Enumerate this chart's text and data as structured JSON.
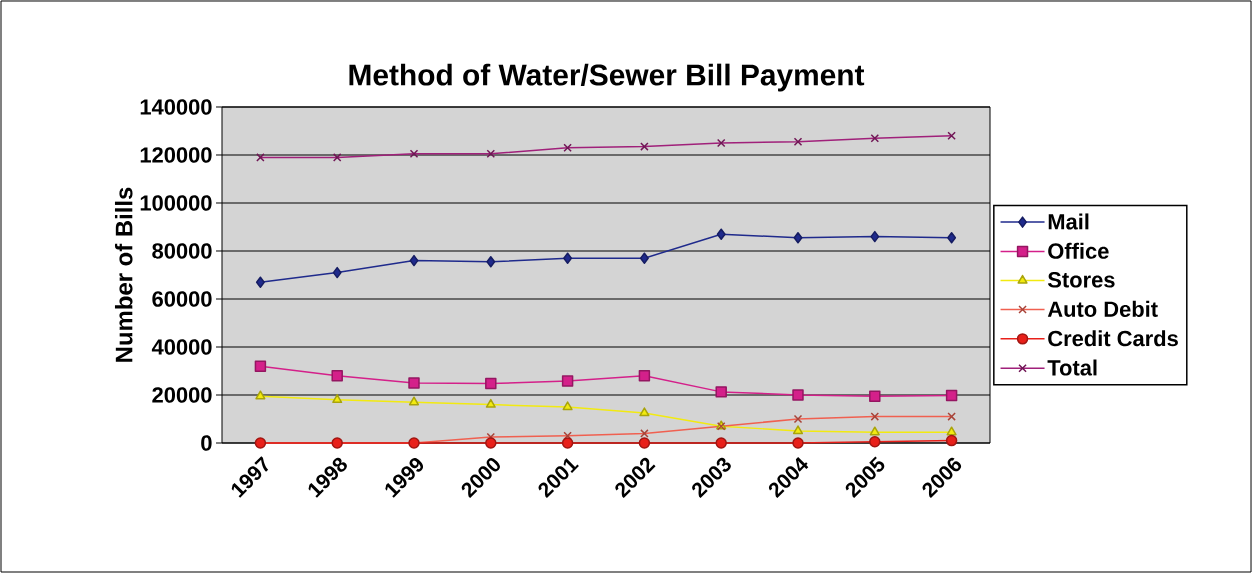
{
  "chart_data": {
    "type": "line",
    "title": "Method of Water/Sewer Bill Payment",
    "ylabel": "Number of Bills",
    "categories": [
      "1997",
      "1998",
      "1999",
      "2000",
      "2001",
      "2002",
      "2003",
      "2004",
      "2005",
      "2006"
    ],
    "series": [
      {
        "name": "Mail",
        "color": "#1f2a8c",
        "marker": "diamond",
        "values": [
          67000,
          71000,
          76000,
          75500,
          77000,
          77000,
          87000,
          85500,
          86000,
          85500
        ]
      },
      {
        "name": "Office",
        "color": "#d4208a",
        "marker": "square",
        "values": [
          32000,
          28000,
          25000,
          24800,
          25800,
          28000,
          21300,
          20000,
          19500,
          19800
        ]
      },
      {
        "name": "Stores",
        "color": "#f2ea10",
        "marker": "triangle",
        "values": [
          19500,
          18000,
          17000,
          16000,
          15000,
          12500,
          7000,
          5000,
          4500,
          4500
        ]
      },
      {
        "name": "Auto Debit",
        "color": "#f06050",
        "marker": "cross",
        "values": [
          0,
          0,
          0,
          2500,
          3000,
          4000,
          7000,
          10000,
          11000,
          11000
        ]
      },
      {
        "name": "Credit Cards",
        "color": "#e8201a",
        "marker": "circle",
        "values": [
          0,
          0,
          0,
          0,
          0,
          0,
          0,
          0,
          500,
          1000
        ]
      },
      {
        "name": "Total",
        "color": "#a0207a",
        "marker": "cross",
        "values": [
          119000,
          119000,
          120500,
          120500,
          123000,
          123500,
          125000,
          125500,
          127000,
          128000
        ]
      }
    ],
    "ylim": [
      0,
      140000
    ],
    "yticks": [
      0,
      20000,
      40000,
      60000,
      80000,
      100000,
      120000,
      140000
    ],
    "grid": "y",
    "legend": "right"
  }
}
